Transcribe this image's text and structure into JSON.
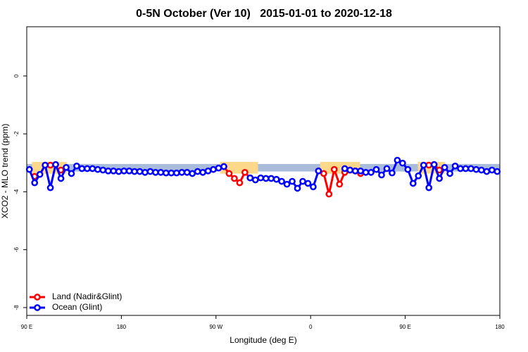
{
  "chart_data": {
    "type": "line",
    "title": "0-5N October (Ver 10)   2015-01-01 to 2020-12-18",
    "x_label": "Longitude (deg E)",
    "y_label": "XCO2 - MLO trend (ppm)",
    "xlim": [
      90,
      540
    ],
    "xticks": [
      {
        "value": 90,
        "label": "90 E"
      },
      {
        "value": 180,
        "label": "180"
      },
      {
        "value": 270,
        "label": "90 W"
      },
      {
        "value": 360,
        "label": "0"
      },
      {
        "value": 450,
        "label": "90 E"
      },
      {
        "value": 540,
        "label": "180"
      }
    ],
    "ylim": [
      -8.27,
      1.7
    ],
    "yticks": [
      0,
      -2,
      -4,
      -6,
      -8
    ],
    "band": {
      "ylim": [
        -3.3,
        -3.04
      ],
      "color": "#a9bcdb"
    },
    "land_regions": {
      "color": "#fcd98a",
      "ranges": [
        [
          95,
          128
        ],
        [
          274,
          310
        ],
        [
          369,
          407
        ],
        [
          462,
          488
        ]
      ]
    },
    "legend": "bottom-left",
    "x": [
      92.5,
      97.5,
      102.5,
      107.5,
      112.5,
      117.5,
      122.5,
      127.5,
      132.5,
      137.5,
      142.5,
      147.5,
      152.5,
      157.5,
      162.5,
      167.5,
      172.5,
      177.5,
      182.5,
      187.5,
      192.5,
      197.5,
      202.5,
      207.5,
      212.5,
      217.5,
      222.5,
      227.5,
      232.5,
      237.5,
      242.5,
      247.5,
      252.5,
      257.5,
      262.5,
      267.5,
      272.5,
      277.5,
      282.5,
      287.5,
      292.5,
      297.5,
      302.5,
      307.5,
      312.5,
      317.5,
      322.5,
      327.5,
      332.5,
      337.5,
      342.5,
      347.5,
      352.5,
      357.5,
      362.5,
      367.5,
      372.5,
      377.5,
      382.5,
      387.5,
      392.5,
      397.5,
      402.5,
      407.5,
      412.5,
      417.5,
      422.5,
      427.5,
      432.5,
      437.5,
      442.5,
      447.5,
      452.5,
      457.5,
      462.5,
      467.5,
      472.5,
      477.5,
      482.5,
      487.5,
      492.5,
      497.5,
      502.5,
      507.5,
      512.5,
      517.5,
      522.5,
      527.5,
      532.5,
      537.5
    ],
    "series": [
      {
        "name": "Land (Nadir&Glint)",
        "color": "#ff0000",
        "values": [
          null,
          -3.47,
          null,
          null,
          -3.08,
          null,
          -3.25,
          null,
          null,
          null,
          null,
          null,
          null,
          null,
          null,
          null,
          null,
          null,
          null,
          null,
          null,
          null,
          null,
          null,
          null,
          null,
          null,
          null,
          null,
          null,
          null,
          null,
          null,
          null,
          null,
          null,
          null,
          -3.13,
          -3.37,
          -3.54,
          -3.69,
          -3.33,
          -3.52,
          null,
          null,
          null,
          null,
          null,
          null,
          null,
          null,
          null,
          null,
          null,
          null,
          -3.28,
          -3.37,
          -4.08,
          -3.23,
          -3.74,
          -3.33,
          -3.25,
          -3.28,
          -3.37,
          null,
          null,
          null,
          null,
          null,
          null,
          null,
          null,
          null,
          null,
          null,
          null,
          -3.08,
          -3.06,
          -3.25,
          null,
          null,
          null,
          null,
          null,
          null,
          null,
          null,
          null,
          null,
          null
        ]
      },
      {
        "name": "Ocean (Glint)",
        "color": "#0000ff",
        "values": [
          -3.23,
          -3.69,
          -3.4,
          -3.08,
          -3.86,
          -3.06,
          -3.54,
          -3.16,
          -3.37,
          -3.11,
          -3.2,
          -3.2,
          -3.2,
          -3.23,
          -3.25,
          -3.28,
          -3.28,
          -3.3,
          -3.28,
          -3.28,
          -3.3,
          -3.3,
          -3.33,
          -3.3,
          -3.33,
          -3.33,
          -3.35,
          -3.35,
          -3.35,
          -3.33,
          -3.33,
          -3.37,
          -3.3,
          -3.33,
          -3.28,
          -3.23,
          -3.18,
          -3.13,
          null,
          null,
          null,
          null,
          -3.52,
          -3.59,
          -3.52,
          -3.54,
          -3.54,
          -3.57,
          -3.64,
          -3.74,
          -3.64,
          -3.88,
          -3.64,
          -3.71,
          -3.83,
          -3.28,
          null,
          null,
          null,
          null,
          -3.2,
          -3.25,
          -3.28,
          -3.28,
          -3.33,
          -3.33,
          -3.23,
          -3.42,
          -3.2,
          -3.35,
          -2.91,
          -3.01,
          -3.23,
          -3.71,
          -3.45,
          -3.08,
          -3.86,
          -3.06,
          -3.54,
          -3.16,
          -3.37,
          -3.11,
          -3.2,
          -3.2,
          -3.2,
          -3.23,
          -3.25,
          -3.3,
          -3.25,
          -3.3
        ]
      }
    ]
  }
}
